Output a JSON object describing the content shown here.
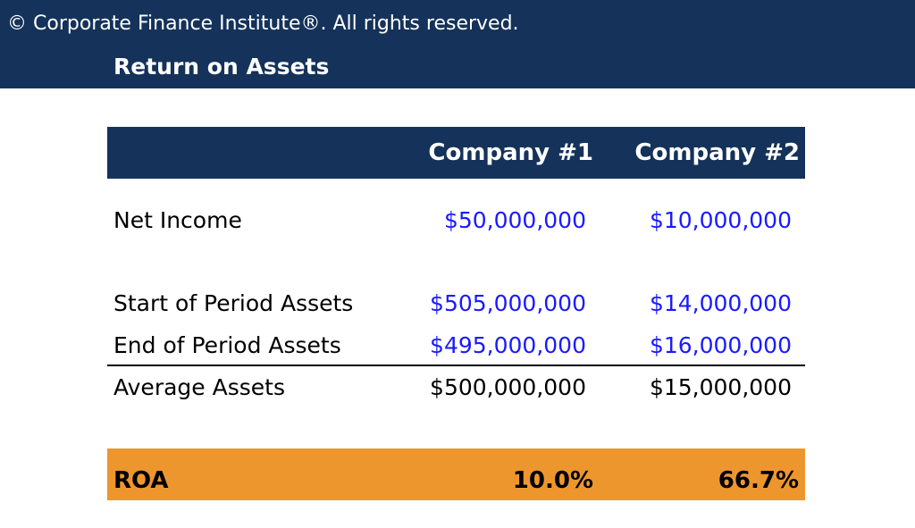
{
  "header": {
    "copyright": "© Corporate Finance Institute®. All rights reserved.",
    "title": "Return on Assets"
  },
  "table": {
    "columns": [
      "Company #1",
      "Company #2"
    ],
    "rows": [
      {
        "label": "Net Income",
        "values": [
          "$50,000,000",
          "$10,000,000"
        ],
        "kind": "input"
      },
      {
        "label": "Start of Period Assets",
        "values": [
          "$505,000,000",
          "$14,000,000"
        ],
        "kind": "input"
      },
      {
        "label": "End of Period Assets",
        "values": [
          "$495,000,000",
          "$16,000,000"
        ],
        "kind": "input"
      },
      {
        "label": "Average Assets",
        "values": [
          "$500,000,000",
          "$15,000,000"
        ],
        "kind": "calc"
      }
    ],
    "result": {
      "label": "ROA",
      "values": [
        "10.0%",
        "66.7%"
      ]
    }
  },
  "colors": {
    "header_bg": "#14325a",
    "input_text": "#1a1aff",
    "result_bg": "#ee962e"
  }
}
